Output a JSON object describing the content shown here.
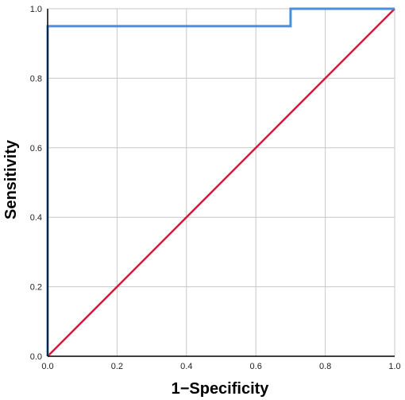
{
  "chart_data": {
    "type": "line",
    "title": "",
    "xlabel": "1−Specificity",
    "ylabel": "Sensitivity",
    "xlim": [
      0,
      1
    ],
    "ylim": [
      0,
      1
    ],
    "xticks": [
      "0.0",
      "0.2",
      "0.4",
      "0.6",
      "0.8",
      "1.0"
    ],
    "yticks": [
      "0.0",
      "0.2",
      "0.4",
      "0.6",
      "0.8",
      "1.0"
    ],
    "grid": true,
    "legend": "none",
    "series": [
      {
        "color": "#4a8fdc",
        "style": "step",
        "points": [
          [
            0,
            0
          ],
          [
            0,
            0.95
          ],
          [
            0.7,
            0.95
          ],
          [
            0.7,
            1.0
          ],
          [
            1.0,
            1.0
          ]
        ]
      },
      {
        "color": "#d01c3a",
        "style": "diagonal",
        "points": [
          [
            0,
            0
          ],
          [
            1,
            1
          ]
        ]
      }
    ]
  }
}
